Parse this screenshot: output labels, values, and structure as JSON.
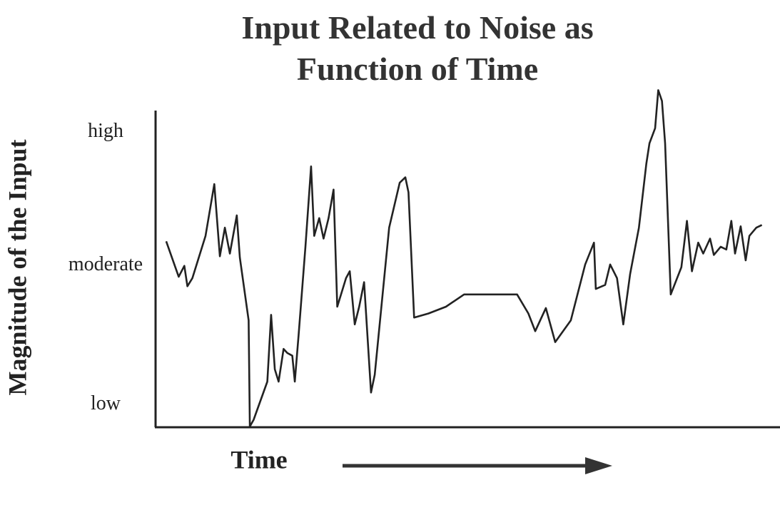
{
  "chart_data": {
    "type": "line",
    "title": "Input Related to Noise as Function of Time",
    "x_label": "Time",
    "y_label": "Magnitude of the Input",
    "color": "#222222",
    "xlim": [
      0,
      100
    ],
    "ylim": [
      0.84,
      3.16
    ],
    "yticks": [
      {
        "value": 1,
        "label": "low"
      },
      {
        "value": 2.02,
        "label": "moderate"
      },
      {
        "value": 3,
        "label": "high"
      }
    ],
    "x": [
      1.7,
      3.7,
      4.6,
      5.1,
      5.9,
      8.0,
      9.4,
      10.3,
      11.1,
      11.9,
      13.0,
      13.5,
      14.9,
      15.1,
      15.7,
      17.9,
      18.5,
      19.1,
      19.7,
      20.5,
      21.1,
      21.9,
      22.3,
      22.9,
      24.0,
      24.9,
      25.4,
      26.2,
      26.9,
      27.7,
      28.5,
      29.1,
      30.5,
      31.1,
      31.9,
      32.6,
      33.4,
      34.5,
      35.1,
      37.4,
      39.1,
      40.0,
      40.5,
      41.4,
      43.7,
      46.5,
      49.4,
      53.9,
      57.9,
      59.7,
      60.8,
      62.5,
      64.0,
      66.5,
      68.8,
      70.2,
      70.5,
      72.0,
      72.8,
      73.9,
      74.9,
      76.0,
      77.4,
      78.6,
      79.1,
      80.0,
      80.5,
      81.1,
      81.6,
      82.5,
      84.2,
      85.1,
      85.9,
      86.9,
      87.7,
      88.8,
      89.4,
      90.5,
      91.4,
      92.2,
      92.8,
      93.7,
      94.5,
      95.1,
      96.2,
      97.1
    ],
    "values": [
      2.2,
      1.94,
      2.02,
      1.87,
      1.93,
      2.24,
      2.62,
      2.09,
      2.3,
      2.11,
      2.39,
      2.08,
      1.62,
      0.84,
      0.89,
      1.17,
      1.66,
      1.26,
      1.17,
      1.41,
      1.38,
      1.36,
      1.17,
      1.51,
      2.16,
      2.75,
      2.24,
      2.37,
      2.22,
      2.37,
      2.58,
      1.72,
      1.93,
      1.98,
      1.59,
      1.72,
      1.9,
      1.09,
      1.22,
      2.3,
      2.63,
      2.67,
      2.56,
      1.64,
      1.67,
      1.72,
      1.81,
      1.81,
      1.81,
      1.67,
      1.54,
      1.71,
      1.46,
      1.62,
      2.03,
      2.19,
      1.85,
      1.88,
      2.03,
      1.93,
      1.59,
      1.96,
      2.3,
      2.77,
      2.92,
      3.03,
      3.31,
      3.23,
      2.92,
      1.81,
      2.01,
      2.35,
      1.98,
      2.19,
      2.11,
      2.22,
      2.1,
      2.16,
      2.14,
      2.35,
      2.11,
      2.31,
      2.06,
      2.24,
      2.3,
      2.32
    ]
  }
}
